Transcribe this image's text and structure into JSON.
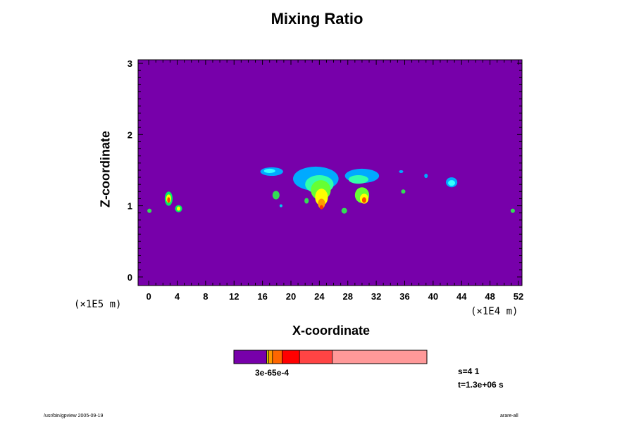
{
  "chart_data": {
    "type": "heatmap",
    "title": "Mixing Ratio",
    "xlabel": "X-coordinate",
    "ylabel": "Z-coordinate",
    "x_unit": "(×1E4 m)",
    "y_unit": "(×1E5 m)",
    "xlim": [
      -1.5,
      52.5
    ],
    "ylim": [
      -0.12,
      3.05
    ],
    "x_ticks": [
      "0",
      "4",
      "8",
      "12",
      "16",
      "20",
      "24",
      "28",
      "32",
      "36",
      "40",
      "44",
      "48",
      "52"
    ],
    "y_ticks": [
      "0",
      "1",
      "2",
      "3"
    ],
    "background_color": "#7700aa",
    "colorbar": {
      "label": "3e-65e-4",
      "colors": [
        "#7700aa",
        "#cccc00",
        "#ff9900",
        "#ff6600",
        "#ff0000",
        "#ff4444",
        "#ff9999"
      ],
      "fractions": [
        0.17,
        0.01,
        0.02,
        0.05,
        0.09,
        0.17,
        0.49
      ]
    },
    "features": [
      {
        "kind": "patch",
        "x": 2.8,
        "z": 1.1,
        "rx": 0.55,
        "rz": 0.1,
        "color": "#00ee66"
      },
      {
        "kind": "patch",
        "x": 2.8,
        "z": 1.1,
        "rx": 0.35,
        "rz": 0.06,
        "color": "#ffff00"
      },
      {
        "kind": "patch",
        "x": 2.8,
        "z": 1.08,
        "rx": 0.2,
        "rz": 0.04,
        "color": "#ff4400"
      },
      {
        "kind": "patch",
        "x": 4.2,
        "z": 0.96,
        "rx": 0.5,
        "rz": 0.05,
        "color": "#00ee66"
      },
      {
        "kind": "patch",
        "x": 4.2,
        "z": 0.96,
        "rx": 0.25,
        "rz": 0.03,
        "color": "#ffff00"
      },
      {
        "kind": "patch",
        "x": 0.1,
        "z": 0.93,
        "rx": 0.3,
        "rz": 0.03,
        "color": "#33dd55"
      },
      {
        "kind": "patch",
        "x": 17.3,
        "z": 1.48,
        "rx": 1.6,
        "rz": 0.06,
        "color": "#00aaff"
      },
      {
        "kind": "patch",
        "x": 17.0,
        "z": 1.49,
        "rx": 0.8,
        "rz": 0.03,
        "color": "#33ffff"
      },
      {
        "kind": "patch",
        "x": 17.9,
        "z": 1.15,
        "rx": 0.5,
        "rz": 0.06,
        "color": "#33dd55"
      },
      {
        "kind": "patch",
        "x": 18.6,
        "z": 1.0,
        "rx": 0.2,
        "rz": 0.02,
        "color": "#00ccee"
      },
      {
        "kind": "patch",
        "x": 23.5,
        "z": 1.38,
        "rx": 3.2,
        "rz": 0.17,
        "color": "#00aaff"
      },
      {
        "kind": "patch",
        "x": 24.0,
        "z": 1.3,
        "rx": 2.0,
        "rz": 0.13,
        "color": "#33ffaa"
      },
      {
        "kind": "patch",
        "x": 24.2,
        "z": 1.22,
        "rx": 1.4,
        "rz": 0.14,
        "color": "#66ff33"
      },
      {
        "kind": "patch",
        "x": 24.3,
        "z": 1.12,
        "rx": 0.9,
        "rz": 0.12,
        "color": "#ffff00"
      },
      {
        "kind": "patch",
        "x": 24.3,
        "z": 1.03,
        "rx": 0.5,
        "rz": 0.07,
        "color": "#ff9900"
      },
      {
        "kind": "patch",
        "x": 24.3,
        "z": 0.98,
        "rx": 0.25,
        "rz": 0.03,
        "color": "#ff3300"
      },
      {
        "kind": "patch",
        "x": 22.2,
        "z": 1.07,
        "rx": 0.3,
        "rz": 0.04,
        "color": "#33dd55"
      },
      {
        "kind": "patch",
        "x": 30.0,
        "z": 1.42,
        "rx": 2.4,
        "rz": 0.1,
        "color": "#00aaff"
      },
      {
        "kind": "patch",
        "x": 29.5,
        "z": 1.37,
        "rx": 1.4,
        "rz": 0.06,
        "color": "#33ffaa"
      },
      {
        "kind": "patch",
        "x": 30.0,
        "z": 1.15,
        "rx": 1.0,
        "rz": 0.11,
        "color": "#66ff33"
      },
      {
        "kind": "patch",
        "x": 30.3,
        "z": 1.1,
        "rx": 0.6,
        "rz": 0.07,
        "color": "#ffff00"
      },
      {
        "kind": "patch",
        "x": 30.3,
        "z": 1.08,
        "rx": 0.3,
        "rz": 0.04,
        "color": "#ff4400"
      },
      {
        "kind": "patch",
        "x": 27.5,
        "z": 0.93,
        "rx": 0.4,
        "rz": 0.04,
        "color": "#33dd55"
      },
      {
        "kind": "patch",
        "x": 35.8,
        "z": 1.2,
        "rx": 0.3,
        "rz": 0.03,
        "color": "#33dd55"
      },
      {
        "kind": "patch",
        "x": 35.5,
        "z": 1.48,
        "rx": 0.3,
        "rz": 0.02,
        "color": "#00aaff"
      },
      {
        "kind": "patch",
        "x": 39.0,
        "z": 1.42,
        "rx": 0.25,
        "rz": 0.03,
        "color": "#00aaff"
      },
      {
        "kind": "patch",
        "x": 42.6,
        "z": 1.33,
        "rx": 0.8,
        "rz": 0.07,
        "color": "#00aaff"
      },
      {
        "kind": "patch",
        "x": 42.6,
        "z": 1.32,
        "rx": 0.5,
        "rz": 0.04,
        "color": "#33ffff"
      },
      {
        "kind": "patch",
        "x": 51.2,
        "z": 0.93,
        "rx": 0.3,
        "rz": 0.03,
        "color": "#33dd55"
      }
    ]
  },
  "info": {
    "step": "s=4 1",
    "time": "t=1.3e+06 s"
  },
  "footer": {
    "left": "/usr/bin/gpview 2005-09-19",
    "right": "arare-all"
  }
}
